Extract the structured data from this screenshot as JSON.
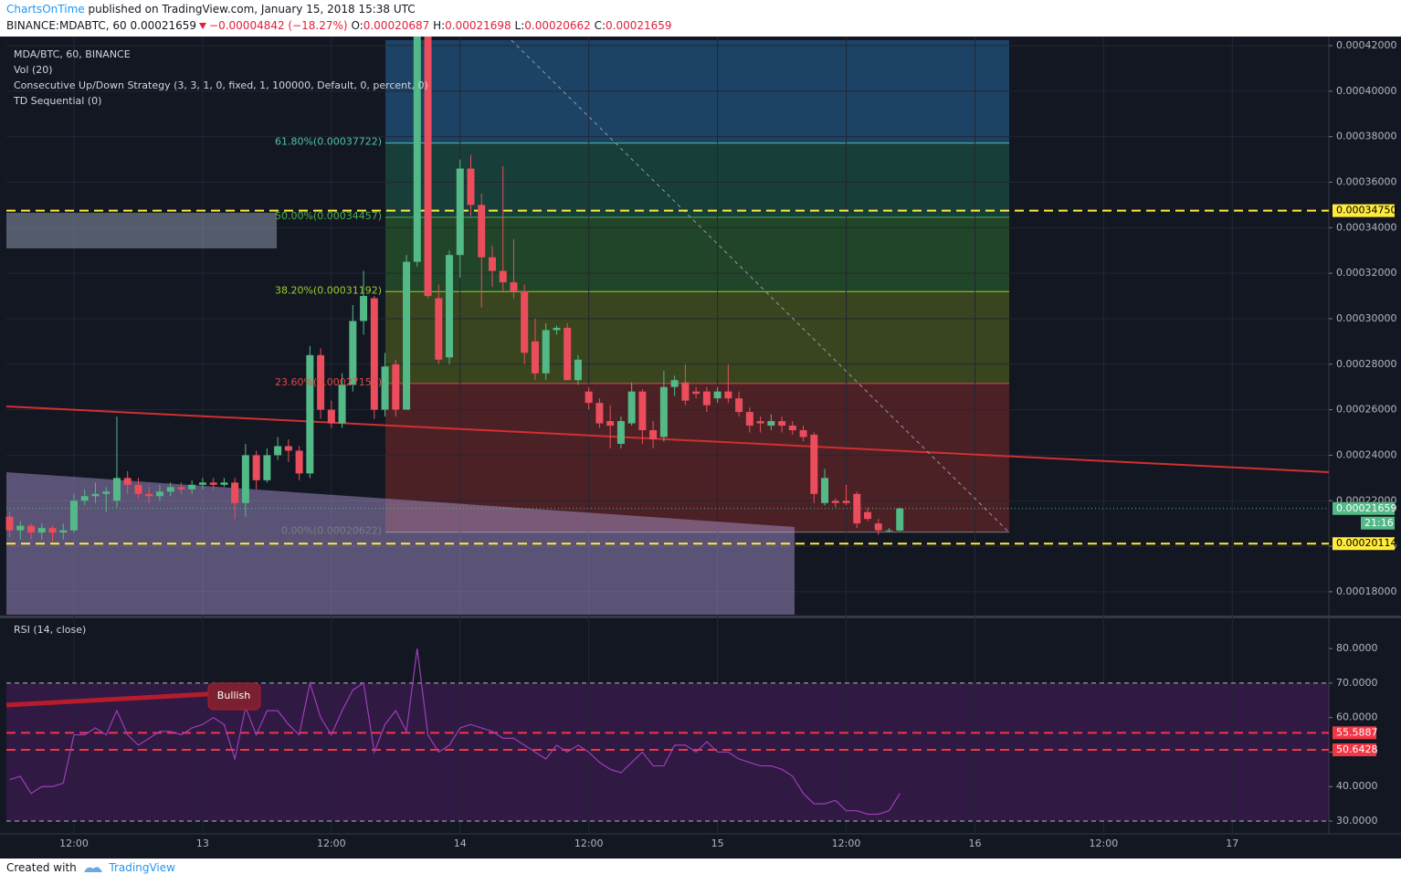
{
  "header": {
    "author": "ChartsOnTime",
    "published": "published on TradingView.com, January 15, 2018 15:38 UTC",
    "symbol": "BINANCE:MDABTC, 60",
    "price": "0.00021659",
    "change": "−0.00004842 (−18.27%)",
    "o_label": "O:",
    "o": "0.00020687",
    "h_label": "H:",
    "h": "0.00021698",
    "l_label": "L:",
    "l": "0.00020662",
    "c_label": "C:",
    "c": "0.00021659"
  },
  "footer": {
    "created": "Created with",
    "brand": "TradingView"
  },
  "chart_data": [
    {
      "type": "candlestick",
      "legend": [
        "MDA/BTC, 60, BINANCE",
        "Vol (20)",
        "Consecutive Up/Down Strategy (3, 3, 1, 0, fixed, 1, 100000, Default, 0, percent, 0)",
        "TD Sequential (0)"
      ],
      "up_color": "#53b987",
      "down_color": "#eb4d5c",
      "x": [
        0,
        1,
        2,
        3,
        4,
        5,
        6,
        7,
        8,
        9,
        10,
        11,
        12,
        13,
        14,
        15,
        16,
        17,
        18,
        19,
        20,
        21,
        22,
        23,
        24,
        25,
        26,
        27,
        28,
        29,
        30,
        31,
        32,
        33,
        34,
        35,
        36,
        37,
        38,
        39,
        40,
        41,
        42,
        43,
        44,
        45,
        46,
        47,
        48,
        49,
        50,
        51,
        52,
        53,
        54,
        55,
        56,
        57,
        58,
        59,
        60,
        61,
        62,
        63,
        64,
        65,
        66,
        67,
        68,
        69,
        70,
        71,
        72,
        73,
        74,
        75,
        76,
        77,
        78,
        79,
        80,
        81,
        82,
        83
      ],
      "open": [
        0.000213,
        0.000207,
        0.000209,
        0.000206,
        0.000208,
        0.000206,
        0.000207,
        0.00022,
        0.000222,
        0.000223,
        0.00022,
        0.00023,
        0.000227,
        0.000223,
        0.000222,
        0.000224,
        0.000226,
        0.000225,
        0.000227,
        0.000228,
        0.000227,
        0.000228,
        0.000219,
        0.00024,
        0.000229,
        0.00024,
        0.000244,
        0.000242,
        0.000232,
        0.000284,
        0.00026,
        0.000254,
        0.000271,
        0.000299,
        0.000309,
        0.00026,
        0.00028,
        0.00026,
        0.000325,
        0.000425,
        0.000309,
        0.000283,
        0.000328,
        0.000366,
        0.00035,
        0.000327,
        0.000321,
        0.000316,
        0.000312,
        0.00029,
        0.000276,
        0.000295,
        0.000296,
        0.000273,
        0.000268,
        0.000263,
        0.000255,
        0.000245,
        0.000254,
        0.000268,
        0.000251,
        0.000248,
        0.00027,
        0.000272,
        0.000268,
        0.000268,
        0.000265,
        0.000268,
        0.000265,
        0.000259,
        0.000255,
        0.000253,
        0.000255,
        0.000253,
        0.000251,
        0.000249,
        0.000219,
        0.00022,
        0.00022,
        0.000223,
        0.000215,
        0.00021,
        0.000207,
        0.00020687
      ],
      "high": [
        0.000215,
        0.000211,
        0.00021,
        0.00021,
        0.000209,
        0.00021,
        0.000223,
        0.000225,
        0.000228,
        0.000226,
        0.000257,
        0.000233,
        0.00023,
        0.000226,
        0.000227,
        0.000228,
        0.000228,
        0.000229,
        0.00023,
        0.00023,
        0.00023,
        0.00023,
        0.000245,
        0.000242,
        0.000243,
        0.000248,
        0.000247,
        0.000244,
        0.000288,
        0.000287,
        0.000264,
        0.000276,
        0.000306,
        0.000321,
        0.00031,
        0.000285,
        0.000282,
        0.000328,
        0.00043,
        0.00043,
        0.000315,
        0.00033,
        0.00037,
        0.000372,
        0.000355,
        0.000332,
        0.000367,
        0.000335,
        0.000315,
        0.0003,
        0.000298,
        0.000297,
        0.000298,
        0.000284,
        0.00027,
        0.000265,
        0.000262,
        0.000257,
        0.000272,
        0.000269,
        0.000255,
        0.000277,
        0.000275,
        0.00028,
        0.00027,
        0.00027,
        0.00027,
        0.00028,
        0.000268,
        0.000261,
        0.000257,
        0.000258,
        0.000257,
        0.000255,
        0.000253,
        0.00025,
        0.000234,
        0.000221,
        0.000227,
        0.000224,
        0.000217,
        0.000212,
        0.000208,
        0.00021698
      ],
      "low": [
        0.000204,
        0.000203,
        0.000203,
        0.000203,
        0.000202,
        0.000203,
        0.000206,
        0.000218,
        0.000219,
        0.000215,
        0.000217,
        0.000223,
        0.000221,
        0.000219,
        0.00022,
        0.000222,
        0.000223,
        0.000223,
        0.000225,
        0.000225,
        0.000226,
        0.000212,
        0.000213,
        0.000225,
        0.000228,
        0.000238,
        0.000237,
        0.000229,
        0.00023,
        0.000256,
        0.000252,
        0.000252,
        0.000268,
        0.000293,
        0.000256,
        0.000257,
        0.000257,
        0.00026,
        0.000323,
        0.000309,
        0.00028,
        0.00028,
        0.000318,
        0.000345,
        0.000305,
        0.000314,
        0.000312,
        0.000309,
        0.00028,
        0.000273,
        0.000273,
        0.000293,
        0.000273,
        0.000271,
        0.00026,
        0.000252,
        0.000243,
        0.000243,
        0.000253,
        0.000245,
        0.000243,
        0.000246,
        0.000266,
        0.000262,
        0.000265,
        0.000259,
        0.000263,
        0.000263,
        0.000257,
        0.00025,
        0.00025,
        0.000251,
        0.00025,
        0.000249,
        0.000246,
        0.000219,
        0.000218,
        0.000217,
        0.000218,
        0.000208,
        0.000211,
        0.000205,
        0.000206,
        0.00020662
      ],
      "close": [
        0.000207,
        0.000209,
        0.000206,
        0.000208,
        0.000206,
        0.000207,
        0.00022,
        0.000222,
        0.000223,
        0.000224,
        0.00023,
        0.000227,
        0.000223,
        0.000222,
        0.000224,
        0.000226,
        0.000225,
        0.000227,
        0.000228,
        0.000227,
        0.000228,
        0.000219,
        0.00024,
        0.000229,
        0.00024,
        0.000244,
        0.000242,
        0.000232,
        0.000284,
        0.00026,
        0.000254,
        0.000271,
        0.000299,
        0.00031,
        0.00026,
        0.000279,
        0.00026,
        0.000325,
        0.000425,
        0.00031,
        0.000282,
        0.000328,
        0.000366,
        0.00035,
        0.000327,
        0.000321,
        0.000316,
        0.000312,
        0.000285,
        0.000276,
        0.000295,
        0.000296,
        0.000273,
        0.000282,
        0.000263,
        0.000254,
        0.000253,
        0.000255,
        0.000268,
        0.000251,
        0.000247,
        0.00027,
        0.000273,
        0.000264,
        0.000267,
        0.000262,
        0.000268,
        0.000265,
        0.000259,
        0.000253,
        0.000254,
        0.000255,
        0.000253,
        0.000251,
        0.000248,
        0.000223,
        0.00023,
        0.000219,
        0.000219,
        0.00021,
        0.000212,
        0.000207,
        0.000207,
        0.00021659
      ],
      "xlim": [
        -0.3,
        123
      ],
      "xticks": [
        {
          "value": 6,
          "label": "12:00"
        },
        {
          "value": 18,
          "label": "13"
        },
        {
          "value": 30,
          "label": "12:00"
        },
        {
          "value": 42,
          "label": "14"
        },
        {
          "value": 54,
          "label": "12:00"
        },
        {
          "value": 66,
          "label": "15"
        },
        {
          "value": 78,
          "label": "12:00"
        },
        {
          "value": 90,
          "label": "16"
        },
        {
          "value": 102,
          "label": "12:00"
        },
        {
          "value": 114,
          "label": "17"
        }
      ],
      "ylim": [
        0.00016993,
        0.00042241
      ],
      "yticks": [
        {
          "value": 0.00018,
          "label": "0.00018000"
        },
        {
          "value": 0.0002,
          "label": "0.00020000"
        },
        {
          "value": 0.00022,
          "label": "0.00022000"
        },
        {
          "value": 0.00024,
          "label": "0.00024000"
        },
        {
          "value": 0.00026,
          "label": "0.00026000"
        },
        {
          "value": 0.00028,
          "label": "0.00028000"
        },
        {
          "value": 0.0003,
          "label": "0.00030000"
        },
        {
          "value": 0.00032,
          "label": "0.00032000"
        },
        {
          "value": 0.00034,
          "label": "0.00034000"
        },
        {
          "value": 0.00036,
          "label": "0.00036000"
        },
        {
          "value": 0.00038,
          "label": "0.00038000"
        },
        {
          "value": 0.0004,
          "label": "0.00040000"
        },
        {
          "value": 0.00042,
          "label": "0.00042000"
        }
      ],
      "grid": true,
      "fib_levels": [
        {
          "value": 0.00037722,
          "label": "61.80%(0.00037722)",
          "color": "#4fc3a1"
        },
        {
          "value": 0.00034457,
          "label": "50.00%(0.00034457)",
          "color": "#4caf50"
        },
        {
          "value": 0.00031192,
          "label": "38.20%(0.00031192)",
          "color": "#9acd32"
        },
        {
          "value": 0.00027152,
          "label": "23.60%(0.00027152)",
          "color": "#e04848"
        },
        {
          "value": 0.00020622,
          "label": "0.00%(0.00020622)",
          "color": "#787b86"
        }
      ],
      "price_lines": [
        {
          "value": 0.0003475,
          "label": "0.00034750",
          "color": "#ffeb3b"
        },
        {
          "value": 0.00020114,
          "label": "0.00020114",
          "color": "#ffeb3b"
        }
      ],
      "last_price": {
        "value": 0.00021659,
        "label": "0.00021659",
        "color": "#53b987"
      },
      "countdown": "21:16"
    },
    {
      "type": "line",
      "title": "RSI (14, close)",
      "color": "#9c3fb8",
      "values": [
        42,
        43,
        38,
        40,
        40,
        41,
        55,
        55,
        57,
        55,
        62,
        55,
        52,
        54,
        56,
        56,
        55,
        57,
        58,
        60,
        58,
        48,
        63,
        55,
        62,
        62,
        58,
        55,
        70,
        60,
        55,
        62,
        68,
        70,
        50,
        58,
        62,
        56,
        80,
        55,
        50,
        52,
        57,
        58,
        57,
        56,
        54,
        54,
        52,
        50,
        48,
        52,
        50,
        52,
        50,
        47,
        45,
        44,
        47,
        50,
        46,
        46,
        52,
        52,
        50,
        53,
        50,
        50,
        48,
        47,
        46,
        46,
        45,
        43,
        38,
        35,
        35,
        36,
        33,
        33,
        32,
        32,
        33,
        38
      ],
      "ylim": [
        26.3,
        88.5
      ],
      "yticks": [
        {
          "value": 30,
          "label": "30.0000"
        },
        {
          "value": 40,
          "label": "40.0000"
        },
        {
          "value": 50,
          "label": "50.0000"
        },
        {
          "value": 60,
          "label": "60.0000"
        },
        {
          "value": 70,
          "label": "70.0000"
        },
        {
          "value": 80,
          "label": "80.0000"
        }
      ],
      "bands": [
        70,
        30
      ],
      "levels": [
        {
          "value": 55.5887,
          "label": "55.5887",
          "color": "#f23645"
        },
        {
          "value": 50.6428,
          "label": "50.6428",
          "color": "#f23645"
        }
      ],
      "annotation": "Bullish"
    }
  ]
}
